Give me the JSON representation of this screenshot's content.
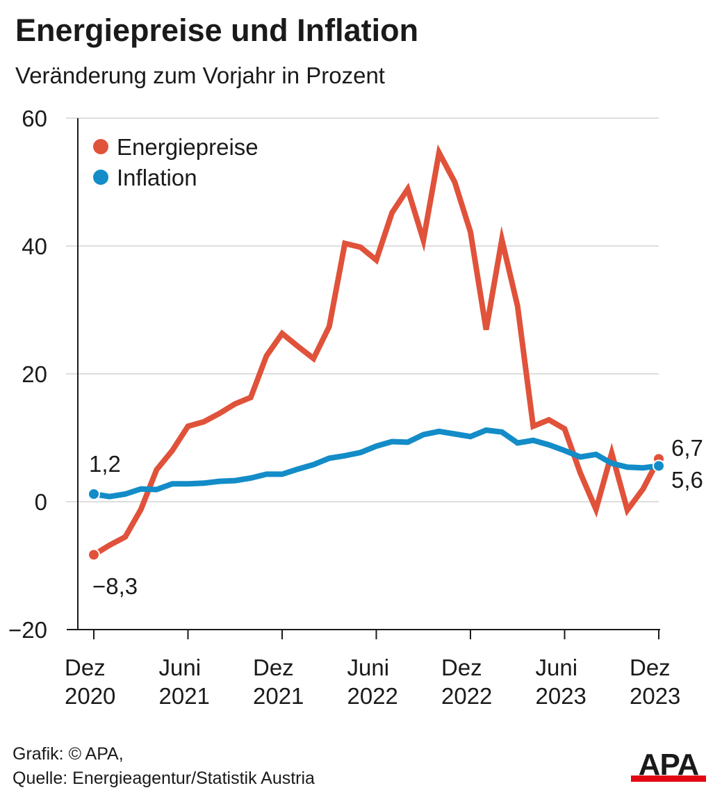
{
  "header": {
    "title": "Energiepreise und Inflation",
    "subtitle": "Veränderung zum Vorjahr in Prozent"
  },
  "chart_data": {
    "type": "line",
    "title": "Energiepreise und Inflation",
    "subtitle": "Veränderung zum Vorjahr in Prozent",
    "ylim": [
      -20,
      60
    ],
    "yticks": [
      {
        "value": 60,
        "label": "60"
      },
      {
        "value": 40,
        "label": "40"
      },
      {
        "value": 20,
        "label": "20"
      },
      {
        "value": 0,
        "label": "0"
      },
      {
        "value": -20,
        "label": "−20"
      }
    ],
    "xticks": [
      {
        "index": 0,
        "line1": "Dez",
        "line2": "2020"
      },
      {
        "index": 6,
        "line1": "Juni",
        "line2": "2021"
      },
      {
        "index": 12,
        "line1": "Dez",
        "line2": "2021"
      },
      {
        "index": 18,
        "line1": "Juni",
        "line2": "2022"
      },
      {
        "index": 24,
        "line1": "Dez",
        "line2": "2022"
      },
      {
        "index": 30,
        "line1": "Juni",
        "line2": "2023"
      },
      {
        "index": 36,
        "line1": "Dez",
        "line2": "2023"
      }
    ],
    "x": [
      "Dez 2020",
      "Jan 2021",
      "Feb 2021",
      "Mär 2021",
      "Apr 2021",
      "Mai 2021",
      "Juni 2021",
      "Juli 2021",
      "Aug 2021",
      "Sep 2021",
      "Okt 2021",
      "Nov 2021",
      "Dez 2021",
      "Jan 2022",
      "Feb 2022",
      "Mär 2022",
      "Apr 2022",
      "Mai 2022",
      "Juni 2022",
      "Juli 2022",
      "Aug 2022",
      "Sep 2022",
      "Okt 2022",
      "Nov 2022",
      "Dez 2022",
      "Jan 2023",
      "Feb 2023",
      "Mär 2023",
      "Apr 2023",
      "Mai 2023",
      "Juni 2023",
      "Juli 2023",
      "Aug 2023",
      "Sep 2023",
      "Okt 2023",
      "Nov 2023",
      "Dez 2023"
    ],
    "grid": true,
    "legend_position": "top-left",
    "series": [
      {
        "name": "Energiepreise",
        "color": "#e0523a",
        "values": [
          -8.3,
          -6.8,
          -5.5,
          -1.2,
          5.0,
          8.0,
          11.8,
          12.5,
          13.8,
          15.3,
          16.3,
          22.8,
          26.3,
          24.3,
          22.4,
          27.4,
          40.4,
          39.8,
          37.8,
          45.2,
          48.9,
          40.9,
          54.6,
          50.0,
          42.2,
          26.9,
          41.0,
          30.6,
          11.8,
          12.8,
          11.4,
          4.5,
          -1.2,
          7.6,
          -1.3,
          2.0,
          6.7
        ],
        "end_labels": {
          "first": "−8,3",
          "last": "6,7"
        }
      },
      {
        "name": "Inflation",
        "color": "#138cc8",
        "values": [
          1.2,
          0.8,
          1.2,
          2.0,
          1.9,
          2.8,
          2.8,
          2.9,
          3.2,
          3.3,
          3.7,
          4.3,
          4.3,
          5.1,
          5.8,
          6.8,
          7.2,
          7.7,
          8.7,
          9.4,
          9.3,
          10.5,
          11.0,
          10.6,
          10.2,
          11.2,
          10.9,
          9.2,
          9.6,
          8.9,
          8.0,
          7.0,
          7.4,
          6.0,
          5.4,
          5.3,
          5.6
        ],
        "end_labels": {
          "first": "1,2",
          "last": "5,6"
        }
      }
    ]
  },
  "footer": {
    "credit": "Grafik: © APA,",
    "source": "Quelle: Energieagentur/Statistik Austria",
    "logo_text": "APA",
    "logo_colors": {
      "text": "#1a1a1a",
      "bar": "#e30613"
    }
  }
}
